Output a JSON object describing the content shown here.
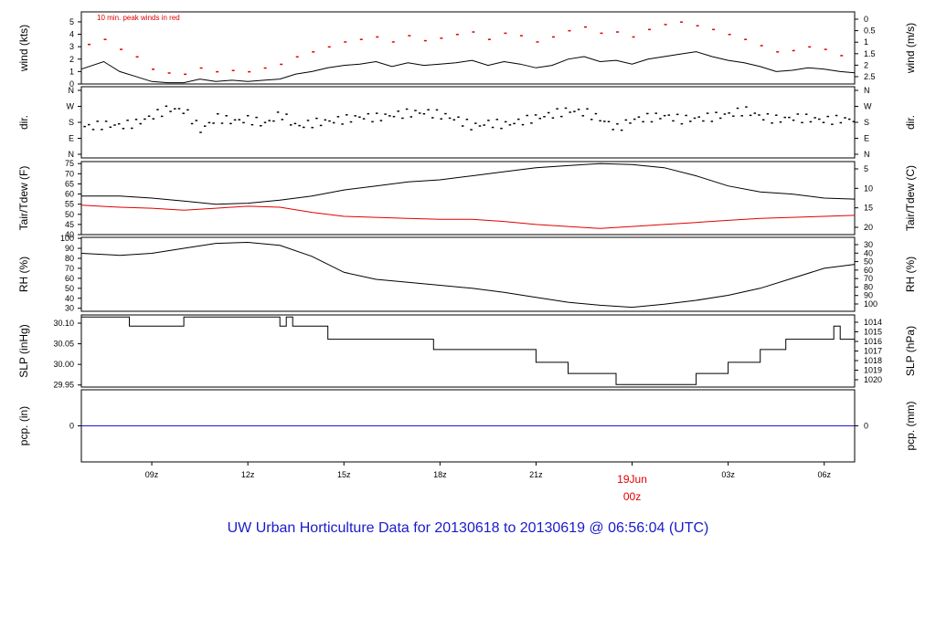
{
  "title": "UW Urban Horticulture Data for 20130618  to  20130619 @ 06:56:04  (UTC)",
  "colors": {
    "black": "#000000",
    "red": "#e00000",
    "blue": "#1a1acc",
    "frame": "#000000"
  },
  "x_axis": {
    "range_hours": [
      6.8,
      30.95
    ],
    "ticks": [
      {
        "hour": 9,
        "label": "09z"
      },
      {
        "hour": 12,
        "label": "12z"
      },
      {
        "hour": 15,
        "label": "15z"
      },
      {
        "hour": 18,
        "label": "18z"
      },
      {
        "hour": 21,
        "label": "21z"
      },
      {
        "hour": 27,
        "label": "03z"
      },
      {
        "hour": 30,
        "label": "06z"
      }
    ],
    "day_marker": {
      "hour": 24,
      "label_top": "19Jun",
      "label_bottom": "00z"
    }
  },
  "chart_data": [
    {
      "type": "line",
      "id": "wind",
      "ylabel_left": "wind (kts)",
      "ylabel_right": "wind (m/s)",
      "note": "10 min. peak winds in red",
      "ylim": [
        0,
        5.8
      ],
      "left_ticks": [
        "0",
        "1",
        "2",
        "3",
        "4",
        "5"
      ],
      "right_ticks": [
        "0",
        "0.5",
        "1",
        "1.5",
        "2",
        "2.5"
      ],
      "series": [
        {
          "x": [
            6.8,
            7.5,
            8.0,
            8.5,
            9.0,
            9.5,
            10.0,
            10.5,
            11.0,
            11.5,
            12.0,
            12.5,
            13.0,
            13.5,
            14.0,
            14.5,
            15.0,
            15.5,
            16.0,
            16.5,
            17.0,
            17.5,
            18.0,
            18.5,
            19.0,
            19.5,
            20.0,
            20.5,
            21.0,
            21.5,
            22.0,
            22.5,
            23.0,
            23.5,
            24.0,
            24.5,
            25.0,
            25.5,
            26.0,
            26.5,
            27.0,
            27.5,
            28.0,
            28.5,
            29.0,
            29.5,
            30.0,
            30.5,
            30.95
          ],
          "y": [
            1.2,
            1.8,
            1.0,
            0.6,
            0.2,
            0.1,
            0.1,
            0.4,
            0.2,
            0.3,
            0.2,
            0.3,
            0.4,
            0.8,
            1.0,
            1.3,
            1.5,
            1.6,
            1.8,
            1.4,
            1.7,
            1.5,
            1.6,
            1.7,
            1.9,
            1.5,
            1.8,
            1.6,
            1.3,
            1.5,
            2.0,
            2.2,
            1.8,
            1.9,
            1.6,
            2.0,
            2.2,
            2.4,
            2.6,
            2.2,
            1.9,
            1.7,
            1.4,
            1.0,
            1.1,
            1.3,
            1.2,
            1.0,
            0.9
          ]
        },
        {
          "x": [
            7.0,
            7.5,
            8.0,
            8.5,
            9.0,
            9.5,
            10.0,
            10.5,
            11.0,
            11.5,
            12.0,
            12.5,
            13.0,
            13.5,
            14.0,
            14.5,
            15.0,
            15.5,
            16.0,
            16.5,
            17.0,
            17.5,
            18.0,
            18.5,
            19.0,
            19.5,
            20.0,
            20.5,
            21.0,
            21.5,
            22.0,
            22.5,
            23.0,
            23.5,
            24.0,
            24.5,
            25.0,
            25.5,
            26.0,
            26.5,
            27.0,
            27.5,
            28.0,
            28.5,
            29.0,
            29.5,
            30.0,
            30.5
          ],
          "y": [
            3.2,
            3.6,
            2.8,
            2.2,
            1.2,
            0.9,
            0.8,
            1.3,
            1.0,
            1.1,
            1.0,
            1.3,
            1.6,
            2.2,
            2.6,
            3.0,
            3.4,
            3.6,
            3.8,
            3.4,
            3.9,
            3.5,
            3.7,
            4.0,
            4.2,
            3.6,
            4.1,
            3.9,
            3.4,
            3.8,
            4.3,
            4.6,
            4.1,
            4.2,
            3.8,
            4.4,
            4.8,
            5.0,
            4.7,
            4.4,
            4.0,
            3.6,
            3.1,
            2.6,
            2.7,
            3.0,
            2.8,
            2.3
          ]
        }
      ]
    },
    {
      "type": "scatter",
      "id": "dir",
      "ylabel_left": "dir.",
      "ylabel_right": "dir.",
      "left_ticks": [
        "N",
        "W",
        "S",
        "E",
        "N"
      ],
      "right_ticks": [
        "N",
        "W",
        "S",
        "E",
        "N"
      ],
      "ylim_deg": [
        0,
        360
      ],
      "x": [
        7.0,
        7.5,
        8.0,
        8.5,
        9.5,
        10.0,
        10.5,
        11.0,
        11.5,
        12.0,
        12.5,
        13.0,
        13.5,
        14.0,
        14.5,
        15.0,
        15.5,
        16.0,
        16.5,
        17.0,
        17.5,
        18.0,
        18.5,
        19.0,
        19.5,
        20.0,
        20.5,
        21.0,
        21.5,
        22.0,
        22.5,
        23.0,
        23.5,
        24.0,
        24.5,
        25.0,
        25.5,
        26.0,
        26.5,
        27.0,
        27.5,
        28.0,
        28.5,
        29.0,
        29.5,
        30.0,
        30.5
      ],
      "y": [
        160,
        170,
        165,
        180,
        260,
        250,
        140,
        210,
        190,
        200,
        175,
        230,
        160,
        180,
        190,
        200,
        215,
        210,
        225,
        235,
        240,
        225,
        200,
        160,
        180,
        170,
        190,
        210,
        230,
        250,
        240,
        200,
        150,
        200,
        210,
        220,
        200,
        205,
        215,
        230,
        250,
        215,
        200,
        210,
        205,
        195,
        200
      ]
    },
    {
      "type": "line",
      "id": "tair",
      "ylabel_left": "Tair/Tdew (F)",
      "ylabel_right": "Tair/Tdew (C)",
      "ylim": [
        40,
        76
      ],
      "left_ticks": [
        "40",
        "45",
        "50",
        "55",
        "60",
        "65",
        "70",
        "75"
      ],
      "right_ticks": [
        "5",
        "10",
        "15",
        "20"
      ],
      "series": [
        {
          "x": [
            6.8,
            8,
            9,
            10,
            11,
            12,
            13,
            14,
            15,
            16,
            17,
            18,
            19,
            20,
            21,
            22,
            23,
            24,
            25,
            26,
            27,
            28,
            29,
            30,
            30.95
          ],
          "y": [
            59,
            59,
            58,
            56.5,
            55,
            55.5,
            57,
            59,
            62,
            64,
            66,
            67,
            69,
            71,
            73,
            74,
            75,
            74.5,
            73,
            69,
            64,
            61,
            60,
            58,
            57.5
          ]
        },
        {
          "x": [
            6.8,
            8,
            9,
            10,
            11,
            12,
            13,
            14,
            15,
            16,
            17,
            18,
            19,
            20,
            21,
            22,
            23,
            24,
            25,
            26,
            27,
            28,
            29,
            30,
            30.95
          ],
          "y": [
            54.5,
            53.5,
            53,
            52,
            53,
            54,
            53.5,
            51,
            49,
            48.5,
            48,
            47.5,
            47.5,
            46.5,
            45,
            44,
            43,
            44,
            45,
            46,
            47,
            48,
            48.5,
            49,
            49.5
          ]
        }
      ]
    },
    {
      "type": "line",
      "id": "rh",
      "ylabel_left": "RH (%)",
      "ylabel_right": "RH (%)",
      "ylim": [
        27,
        101
      ],
      "left_ticks": [
        "30",
        "40",
        "50",
        "60",
        "70",
        "80",
        "90",
        "100"
      ],
      "right_ticks": [
        "30",
        "40",
        "50",
        "60",
        "70",
        "80",
        "90",
        "100"
      ],
      "series": [
        {
          "x": [
            6.8,
            8,
            9,
            10,
            11,
            12,
            13,
            14,
            15,
            16,
            17,
            18,
            19,
            20,
            21,
            22,
            23,
            24,
            25,
            26,
            27,
            28,
            29,
            30,
            30.95
          ],
          "y": [
            85,
            83,
            85,
            90,
            95,
            96,
            93,
            82,
            66,
            59,
            56,
            53,
            50,
            46,
            41,
            36,
            33,
            31,
            34,
            38,
            43,
            50,
            60,
            70,
            74
          ]
        }
      ]
    },
    {
      "type": "line",
      "id": "slp",
      "step": true,
      "ylabel_left": "SLP (inHg)",
      "ylabel_right": "SLP (hPa)",
      "ylim": [
        29.945,
        30.12
      ],
      "left_ticks": [
        "29.95",
        "30.00",
        "30.05",
        "30.10"
      ],
      "right_ticks": [
        "1014",
        "1015",
        "1016",
        "1017",
        "1018",
        "1019",
        "1020"
      ],
      "series": [
        {
          "x": [
            6.8,
            8.3,
            10.0,
            13.0,
            13.2,
            13.4,
            13.7,
            14.5,
            17.8,
            21.0,
            22.0,
            23.0,
            23.5,
            26.0,
            27.0,
            28.0,
            28.8,
            30.3,
            30.5,
            30.95
          ],
          "y": [
            30.115,
            30.093,
            30.115,
            30.093,
            30.115,
            30.093,
            30.093,
            30.061,
            30.036,
            30.005,
            29.978,
            29.978,
            29.951,
            29.978,
            30.005,
            30.036,
            30.061,
            30.093,
            30.061,
            30.061
          ]
        }
      ]
    },
    {
      "type": "line",
      "id": "pcp",
      "ylabel_left": "pcp. (in)",
      "ylabel_right": "pcp. (mm)",
      "ylim": [
        -1,
        1
      ],
      "left_ticks": [
        "0"
      ],
      "right_ticks": [
        "0"
      ],
      "series": [
        {
          "x": [
            6.8,
            30.95
          ],
          "y": [
            0,
            0
          ]
        }
      ]
    }
  ]
}
